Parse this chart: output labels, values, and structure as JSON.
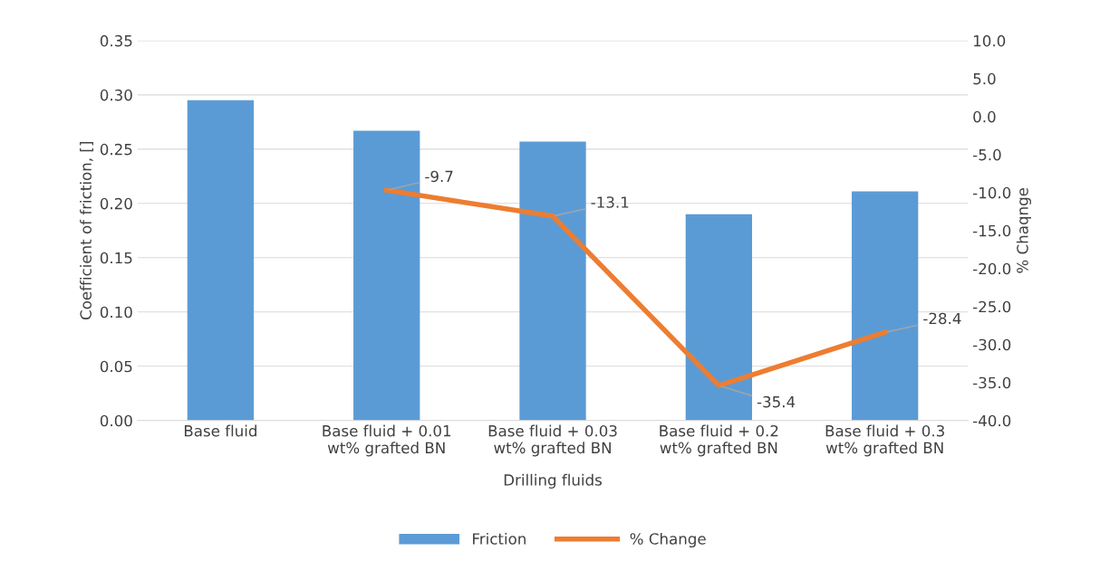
{
  "chart_data": {
    "type": "bar",
    "xlabel": "Drilling fluids",
    "ylabel": "Coefficient of friction, []",
    "y2label": "% Chaqnge",
    "categories": [
      "Base fluid",
      "Base fluid + 0.01 wt% grafted BN",
      "Base fluid + 0.03 wt% grafted BN",
      "Base fluid + 0.2 wt% grafted BN",
      "Base fluid + 0.3 wt% grafted BN"
    ],
    "series": [
      {
        "name": "Friction",
        "color": "#5b9bd5",
        "values": [
          0.295,
          0.267,
          0.257,
          0.19,
          0.211
        ]
      },
      {
        "name": "% Change",
        "type": "line",
        "axis": "y2",
        "color": "#ed7d31",
        "values": [
          null,
          -9.7,
          -13.1,
          -35.4,
          -28.4
        ],
        "value_labels": [
          null,
          "-9.7",
          "-13.1",
          "-35.4",
          "-28.4"
        ]
      }
    ],
    "ylim": [
      0,
      0.35
    ],
    "yticks": [
      {
        "value": 0,
        "label": "0.00"
      },
      {
        "value": 0.05,
        "label": "0.05"
      },
      {
        "value": 0.1,
        "label": "0.10"
      },
      {
        "value": 0.15,
        "label": "0.15"
      },
      {
        "value": 0.2,
        "label": "0.20"
      },
      {
        "value": 0.25,
        "label": "0.25"
      },
      {
        "value": 0.3,
        "label": "0.30"
      },
      {
        "value": 0.35,
        "label": "0.35"
      }
    ],
    "y2lim": [
      -40,
      10
    ],
    "y2ticks": [
      {
        "value": -40,
        "label": "-40.0"
      },
      {
        "value": -35,
        "label": "-35.0"
      },
      {
        "value": -30,
        "label": "-30.0"
      },
      {
        "value": -25,
        "label": "-25.0"
      },
      {
        "value": -20,
        "label": "-20.0"
      },
      {
        "value": -15,
        "label": "-15.0"
      },
      {
        "value": -10,
        "label": "-10.0"
      },
      {
        "value": -5,
        "label": "-5.0"
      },
      {
        "value": 0,
        "label": "0.0"
      },
      {
        "value": 5,
        "label": "5.0"
      },
      {
        "value": 10,
        "label": "10.0"
      }
    ],
    "grid": "y",
    "legend": "bottom"
  }
}
